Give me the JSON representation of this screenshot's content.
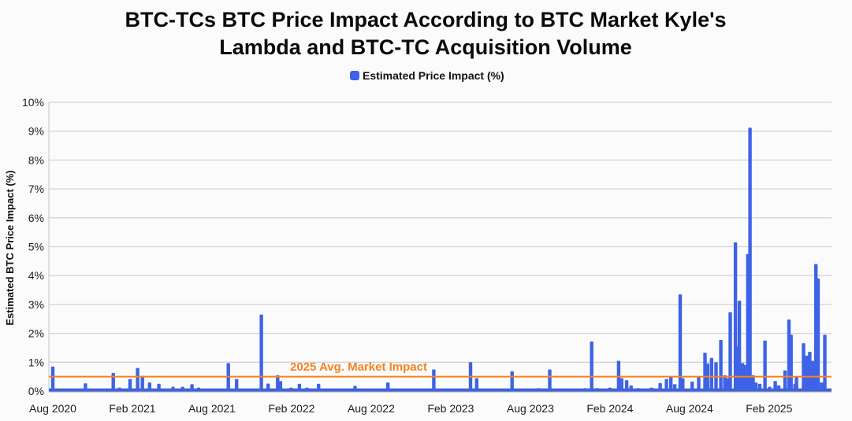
{
  "chart_data": {
    "type": "bar",
    "title_line1": "BTC-TCs BTC Price Impact According to BTC Market Kyle's",
    "title_line2": "Lambda and BTC-TC Acquisition Volume",
    "legend": "Estimated Price Impact (%)",
    "ylabel": "Estimated BTC Price Impact (%)",
    "ylim": [
      0,
      10
    ],
    "y_tick_step": 1,
    "y_tick_suffix": "%",
    "x_ticks": [
      "Aug 2020",
      "Feb 2021",
      "Aug 2021",
      "Feb 2022",
      "Aug 2022",
      "Feb 2023",
      "Aug 2023",
      "Feb 2024",
      "Aug 2024",
      "Feb 2025"
    ],
    "x_tick_interval_months": 6,
    "x_domain": [
      "2020-08-01",
      "2025-07-01"
    ],
    "grid": true,
    "legend_position": "top-center",
    "bar_color": "#3E63E6",
    "reference_line": {
      "value": 0.5,
      "label": "2025 Avg. Market Impact",
      "color": "#F5821F"
    },
    "points": [
      [
        "2020-08-01",
        0.85
      ],
      [
        "2020-09-05",
        0.07
      ],
      [
        "2020-10-15",
        0.27
      ],
      [
        "2020-11-10",
        0.08
      ],
      [
        "2020-12-18",
        0.63
      ],
      [
        "2021-01-02",
        0.12
      ],
      [
        "2021-01-26",
        0.42
      ],
      [
        "2021-02-13",
        0.8
      ],
      [
        "2021-02-24",
        0.53
      ],
      [
        "2021-03-10",
        0.3
      ],
      [
        "2021-04-01",
        0.25
      ],
      [
        "2021-05-03",
        0.15
      ],
      [
        "2021-05-25",
        0.15
      ],
      [
        "2021-06-16",
        0.24
      ],
      [
        "2021-07-01",
        0.12
      ],
      [
        "2021-08-01",
        0.08
      ],
      [
        "2021-09-08",
        0.97
      ],
      [
        "2021-09-27",
        0.42
      ],
      [
        "2021-11-23",
        2.65
      ],
      [
        "2021-12-08",
        0.26
      ],
      [
        "2021-12-30",
        0.55
      ],
      [
        "2022-01-06",
        0.35
      ],
      [
        "2022-01-30",
        0.12
      ],
      [
        "2022-02-19",
        0.25
      ],
      [
        "2022-03-06",
        0.12
      ],
      [
        "2022-04-02",
        0.25
      ],
      [
        "2022-05-15",
        0.05
      ],
      [
        "2022-06-25",
        0.18
      ],
      [
        "2022-08-05",
        0.04
      ],
      [
        "2022-09-09",
        0.3
      ],
      [
        "2022-10-25",
        0.06
      ],
      [
        "2022-11-25",
        0.05
      ],
      [
        "2022-12-23",
        0.75
      ],
      [
        "2023-02-05",
        0.05
      ],
      [
        "2023-03-16",
        1.0
      ],
      [
        "2023-03-30",
        0.45
      ],
      [
        "2023-05-10",
        0.07
      ],
      [
        "2023-06-20",
        0.69
      ],
      [
        "2023-07-25",
        0.08
      ],
      [
        "2023-08-20",
        0.1
      ],
      [
        "2023-09-15",
        0.75
      ],
      [
        "2023-10-15",
        0.08
      ],
      [
        "2023-11-10",
        0.06
      ],
      [
        "2023-12-05",
        0.1
      ],
      [
        "2023-12-20",
        1.72
      ],
      [
        "2024-01-02",
        0.1
      ],
      [
        "2024-01-15",
        0.08
      ],
      [
        "2024-02-01",
        0.12
      ],
      [
        "2024-02-21",
        1.05
      ],
      [
        "2024-02-28",
        0.45
      ],
      [
        "2024-03-09",
        0.38
      ],
      [
        "2024-03-19",
        0.2
      ],
      [
        "2024-04-05",
        0.1
      ],
      [
        "2024-04-20",
        0.08
      ],
      [
        "2024-05-05",
        0.12
      ],
      [
        "2024-05-25",
        0.28
      ],
      [
        "2024-06-09",
        0.42
      ],
      [
        "2024-06-19",
        0.5
      ],
      [
        "2024-06-28",
        0.24
      ],
      [
        "2024-07-10",
        3.35
      ],
      [
        "2024-07-16",
        0.45
      ],
      [
        "2024-08-07",
        0.33
      ],
      [
        "2024-08-22",
        0.5
      ],
      [
        "2024-09-06",
        1.33
      ],
      [
        "2024-09-12",
        0.96
      ],
      [
        "2024-09-21",
        1.15
      ],
      [
        "2024-10-01",
        1.0
      ],
      [
        "2024-10-12",
        1.77
      ],
      [
        "2024-10-21",
        0.55
      ],
      [
        "2024-10-28",
        0.45
      ],
      [
        "2024-11-03",
        2.73
      ],
      [
        "2024-11-15",
        5.15
      ],
      [
        "2024-11-21",
        1.55
      ],
      [
        "2024-11-24",
        3.13
      ],
      [
        "2024-12-01",
        0.97
      ],
      [
        "2024-12-07",
        0.9
      ],
      [
        "2024-12-13",
        4.75
      ],
      [
        "2024-12-18",
        9.12
      ],
      [
        "2024-12-25",
        0.55
      ],
      [
        "2025-01-01",
        0.3
      ],
      [
        "2025-01-10",
        0.25
      ],
      [
        "2025-01-22",
        1.75
      ],
      [
        "2025-02-02",
        0.15
      ],
      [
        "2025-02-15",
        0.35
      ],
      [
        "2025-02-23",
        0.2
      ],
      [
        "2025-03-07",
        0.72
      ],
      [
        "2025-03-16",
        2.48
      ],
      [
        "2025-03-21",
        1.95
      ],
      [
        "2025-03-30",
        0.25
      ],
      [
        "2025-04-03",
        0.5
      ],
      [
        "2025-04-19",
        1.66
      ],
      [
        "2025-04-26",
        1.23
      ],
      [
        "2025-05-03",
        1.36
      ],
      [
        "2025-05-09",
        1.05
      ],
      [
        "2025-05-17",
        4.4
      ],
      [
        "2025-05-22",
        3.9
      ],
      [
        "2025-05-30",
        0.3
      ],
      [
        "2025-06-07",
        1.95
      ]
    ]
  }
}
